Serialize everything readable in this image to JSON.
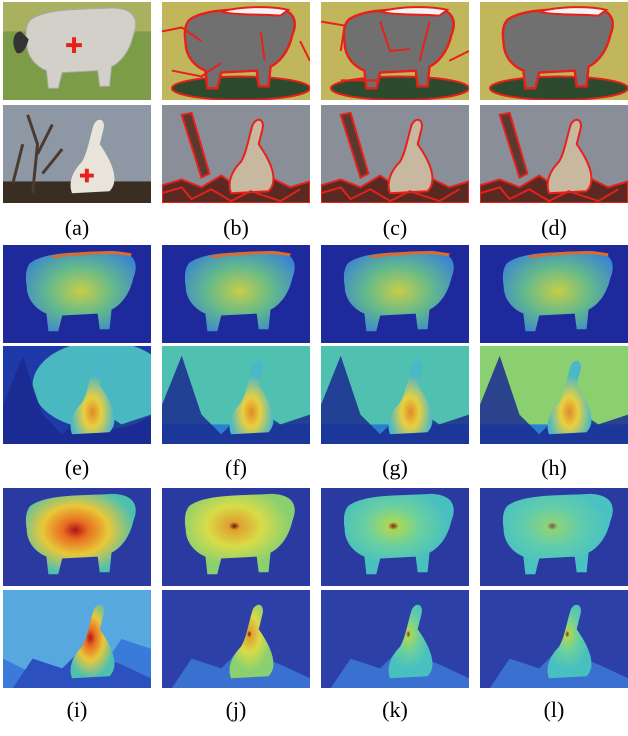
{
  "labels": [
    "(a)",
    "(b)",
    "(c)",
    "(d)",
    "(e)",
    "(f)",
    "(g)",
    "(h)",
    "(i)",
    "(j)",
    "(k)",
    "(l)"
  ]
}
